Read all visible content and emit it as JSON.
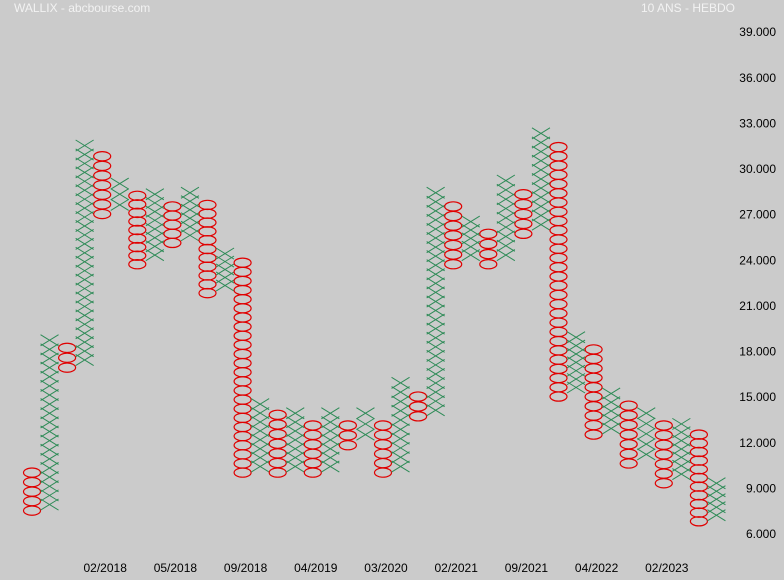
{
  "chart_data": {
    "type": "point-and-figure",
    "title": "WALLIX - abcbourse.com",
    "subtitle": "10 ANS - HEBDO",
    "box_size": 0.6,
    "x_color": "#2e8b57",
    "o_color": "#e00000",
    "ylim": [
      3.04,
      41.17
    ],
    "yticks": [
      {
        "value": 6,
        "label": "6.000"
      },
      {
        "value": 9,
        "label": "9.000"
      },
      {
        "value": 12,
        "label": "12.000"
      },
      {
        "value": 15,
        "label": "15.000"
      },
      {
        "value": 18,
        "label": "18.000"
      },
      {
        "value": 21,
        "label": "21.000"
      },
      {
        "value": 24,
        "label": "24.000"
      },
      {
        "value": 27,
        "label": "27.000"
      },
      {
        "value": 30,
        "label": "30.000"
      },
      {
        "value": 33,
        "label": "33.000"
      },
      {
        "value": 36,
        "label": "36.000"
      },
      {
        "value": 39,
        "label": "39.000"
      }
    ],
    "categories": [
      null,
      null,
      null,
      null,
      "02/2018",
      null,
      null,
      null,
      "05/2018",
      null,
      null,
      null,
      "09/2018",
      null,
      null,
      null,
      "04/2019",
      null,
      null,
      null,
      "03/2020",
      null,
      null,
      null,
      "02/2021",
      null,
      null,
      null,
      "09/2021",
      null,
      null,
      null,
      "04/2022",
      null,
      null,
      null,
      "02/2023",
      null,
      null,
      null
    ],
    "columns": [
      {
        "type": "O",
        "high": 10.1,
        "low": 7.6
      },
      {
        "type": "X",
        "high": 18.8,
        "low": 8.0
      },
      {
        "type": "O",
        "high": 18.3,
        "low": 17.0
      },
      {
        "type": "X",
        "high": 31.6,
        "low": 17.5
      },
      {
        "type": "O",
        "high": 30.9,
        "low": 27.1
      },
      {
        "type": "X",
        "high": 29.1,
        "low": 27.7
      },
      {
        "type": "O",
        "high": 28.3,
        "low": 23.8
      },
      {
        "type": "X",
        "high": 28.4,
        "low": 24.4
      },
      {
        "type": "O",
        "high": 27.6,
        "low": 25.2
      },
      {
        "type": "X",
        "high": 28.5,
        "low": 25.7
      },
      {
        "type": "O",
        "high": 27.7,
        "low": 21.9
      },
      {
        "type": "X",
        "high": 24.5,
        "low": 22.4
      },
      {
        "type": "O",
        "high": 23.9,
        "low": 10.1
      },
      {
        "type": "X",
        "high": 14.6,
        "low": 10.5
      },
      {
        "type": "O",
        "high": 13.9,
        "low": 10.1
      },
      {
        "type": "X",
        "high": 14.0,
        "low": 10.5
      },
      {
        "type": "O",
        "high": 13.2,
        "low": 10.1
      },
      {
        "type": "X",
        "high": 14.0,
        "low": 10.5
      },
      {
        "type": "O",
        "high": 13.2,
        "low": 11.9
      },
      {
        "type": "X",
        "high": 14.0,
        "low": 12.6
      },
      {
        "type": "O",
        "high": 13.2,
        "low": 10.1
      },
      {
        "type": "X",
        "high": 16.0,
        "low": 10.5
      },
      {
        "type": "O",
        "high": 15.1,
        "low": 13.8
      },
      {
        "type": "X",
        "high": 28.5,
        "low": 14.2
      },
      {
        "type": "O",
        "high": 27.6,
        "low": 23.8
      },
      {
        "type": "X",
        "high": 26.6,
        "low": 24.4
      },
      {
        "type": "O",
        "high": 25.8,
        "low": 23.8
      },
      {
        "type": "X",
        "high": 29.3,
        "low": 24.4
      },
      {
        "type": "O",
        "high": 28.4,
        "low": 25.8
      },
      {
        "type": "X",
        "high": 32.4,
        "low": 26.4
      },
      {
        "type": "O",
        "high": 31.5,
        "low": 15.1
      },
      {
        "type": "X",
        "high": 19.0,
        "low": 15.7
      },
      {
        "type": "O",
        "high": 18.2,
        "low": 12.6
      },
      {
        "type": "X",
        "high": 15.3,
        "low": 13.0
      },
      {
        "type": "O",
        "high": 14.5,
        "low": 10.7
      },
      {
        "type": "X",
        "high": 14.0,
        "low": 11.3
      },
      {
        "type": "O",
        "high": 13.2,
        "low": 9.4
      },
      {
        "type": "X",
        "high": 13.3,
        "low": 10.0
      },
      {
        "type": "O",
        "high": 12.6,
        "low": 6.9
      },
      {
        "type": "X",
        "high": 9.4,
        "low": 7.3
      }
    ]
  }
}
